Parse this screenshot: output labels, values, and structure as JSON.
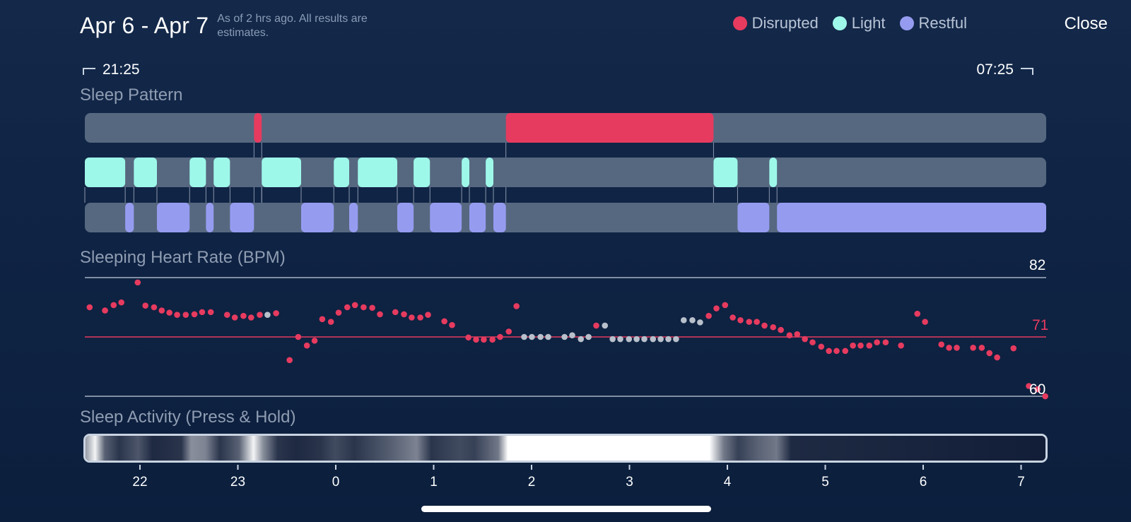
{
  "header": {
    "date_range": "Apr 6 - Apr 7",
    "note": "As of 2 hrs ago. All results are estimates."
  },
  "legend": [
    {
      "label": "Disrupted",
      "color": "#e63b5f"
    },
    {
      "label": "Light",
      "color": "#9ef8ea"
    },
    {
      "label": "Restful",
      "color": "#959cf0"
    }
  ],
  "close_label": "Close",
  "time_range": {
    "start": "21:25",
    "end": "07:25"
  },
  "sections": {
    "sleep_pattern": "Sleep Pattern",
    "heart_rate": "Sleeping Heart Rate (BPM)",
    "activity": "Sleep Activity (Press & Hold)"
  },
  "colors": {
    "disrupted": "#e63b5f",
    "light": "#9ef8ea",
    "restful": "#959cf0",
    "track": "#566880",
    "hr_point": "#e63b5f",
    "hr_missing": "#b8c0cb",
    "grid": "#a6b2c4"
  },
  "chart_data": [
    {
      "type": "timeline",
      "title": "Sleep Pattern",
      "x_unit": "hours after 21:25",
      "x_range": [
        0,
        10
      ],
      "rows": [
        {
          "name": "Disrupted",
          "segments": [
            [
              1.76,
              1.84
            ],
            [
              4.38,
              6.54
            ]
          ]
        },
        {
          "name": "Light",
          "segments": [
            [
              0.0,
              0.42
            ],
            [
              0.51,
              0.75
            ],
            [
              1.09,
              1.26
            ],
            [
              1.34,
              1.51
            ],
            [
              1.84,
              2.25
            ],
            [
              2.59,
              2.75
            ],
            [
              2.84,
              3.25
            ],
            [
              3.42,
              3.59
            ],
            [
              3.92,
              4.0
            ],
            [
              4.17,
              4.25
            ],
            [
              6.54,
              6.79
            ],
            [
              7.12,
              7.2
            ]
          ]
        },
        {
          "name": "Restful",
          "segments": [
            [
              0.42,
              0.51
            ],
            [
              0.75,
              1.09
            ],
            [
              1.26,
              1.34
            ],
            [
              1.51,
              1.76
            ],
            [
              2.25,
              2.59
            ],
            [
              2.75,
              2.84
            ],
            [
              3.25,
              3.42
            ],
            [
              3.59,
              3.92
            ],
            [
              4.0,
              4.17
            ],
            [
              4.25,
              4.38
            ],
            [
              6.79,
              7.12
            ],
            [
              7.2,
              10.0
            ]
          ]
        }
      ]
    },
    {
      "type": "scatter",
      "title": "Sleeping Heart Rate (BPM)",
      "ylim": [
        60,
        82
      ],
      "y_ticks": [
        82,
        71,
        60
      ],
      "reference_line": 71,
      "x_unit": "hours after 21:25",
      "points": [
        [
          0.05,
          76.5
        ],
        [
          0.21,
          75.9
        ],
        [
          0.3,
          76.9
        ],
        [
          0.38,
          77.4
        ],
        [
          0.55,
          81.1
        ],
        [
          0.63,
          76.8
        ],
        [
          0.72,
          76.5
        ],
        [
          0.8,
          75.9
        ],
        [
          0.88,
          75.5
        ],
        [
          0.96,
          75.1
        ],
        [
          1.05,
          75.1
        ],
        [
          1.14,
          75.2
        ],
        [
          1.22,
          75.6
        ],
        [
          1.31,
          75.6
        ],
        [
          1.48,
          75.1
        ],
        [
          1.56,
          74.6
        ],
        [
          1.65,
          74.9
        ],
        [
          1.73,
          74.6
        ],
        [
          1.82,
          75.1
        ],
        [
          1.9,
          75.1
        ],
        [
          1.99,
          75.4
        ],
        [
          2.13,
          66.7
        ],
        [
          2.22,
          71.0
        ],
        [
          2.31,
          69.4
        ],
        [
          2.39,
          70.3
        ],
        [
          2.47,
          74.3
        ],
        [
          2.56,
          73.8
        ],
        [
          2.64,
          75.5
        ],
        [
          2.73,
          76.5
        ],
        [
          2.81,
          76.9
        ],
        [
          2.9,
          76.5
        ],
        [
          2.99,
          76.4
        ],
        [
          3.07,
          75.2
        ],
        [
          3.23,
          75.6
        ],
        [
          3.32,
          75.2
        ],
        [
          3.4,
          74.6
        ],
        [
          3.49,
          74.6
        ],
        [
          3.57,
          75.1
        ],
        [
          3.74,
          73.9
        ],
        [
          3.82,
          73.2
        ],
        [
          3.99,
          70.9
        ],
        [
          4.07,
          70.5
        ],
        [
          4.15,
          70.5
        ],
        [
          4.24,
          70.5
        ],
        [
          4.32,
          71.0
        ],
        [
          4.41,
          72.0
        ],
        [
          4.49,
          76.7
        ],
        [
          4.57,
          71.0
        ],
        [
          4.65,
          71.0
        ],
        [
          4.74,
          71.0
        ],
        [
          4.82,
          71.0
        ],
        [
          4.99,
          71.0
        ],
        [
          5.07,
          71.3
        ],
        [
          5.16,
          70.6
        ],
        [
          5.24,
          71.0
        ],
        [
          5.32,
          73.1
        ],
        [
          5.41,
          73.1
        ],
        [
          5.49,
          70.6
        ],
        [
          5.57,
          70.6
        ],
        [
          5.66,
          70.6
        ],
        [
          5.74,
          70.6
        ],
        [
          5.82,
          70.6
        ],
        [
          5.91,
          70.6
        ],
        [
          5.99,
          70.6
        ],
        [
          6.07,
          70.6
        ],
        [
          6.15,
          70.6
        ],
        [
          6.23,
          74.1
        ],
        [
          6.32,
          74.1
        ],
        [
          6.4,
          73.7
        ],
        [
          6.49,
          74.9
        ],
        [
          6.57,
          76.3
        ],
        [
          6.66,
          76.9
        ],
        [
          6.74,
          74.6
        ],
        [
          6.82,
          74.1
        ],
        [
          6.91,
          73.8
        ],
        [
          6.99,
          73.8
        ],
        [
          7.07,
          73.1
        ],
        [
          7.16,
          72.8
        ],
        [
          7.24,
          72.3
        ],
        [
          7.33,
          71.3
        ],
        [
          7.41,
          71.5
        ],
        [
          7.49,
          70.6
        ],
        [
          7.57,
          70.0
        ],
        [
          7.66,
          69.2
        ],
        [
          7.74,
          68.4
        ],
        [
          7.82,
          68.4
        ],
        [
          7.91,
          68.4
        ],
        [
          7.99,
          69.4
        ],
        [
          8.07,
          69.4
        ],
        [
          8.16,
          69.4
        ],
        [
          8.24,
          70.0
        ],
        [
          8.33,
          70.0
        ],
        [
          8.49,
          69.4
        ],
        [
          8.66,
          75.3
        ],
        [
          8.74,
          73.8
        ],
        [
          8.91,
          69.6
        ],
        [
          8.99,
          69.0
        ],
        [
          9.07,
          69.0
        ],
        [
          9.24,
          69.0
        ],
        [
          9.33,
          69.0
        ],
        [
          9.41,
          68.0
        ],
        [
          9.49,
          67.2
        ],
        [
          9.66,
          68.9
        ],
        [
          9.82,
          61.9
        ],
        [
          9.91,
          61.3
        ],
        [
          9.99,
          60.0
        ]
      ],
      "missing_points": [
        [
          1.9,
          75.1
        ],
        [
          4.57,
          71.0
        ],
        [
          4.65,
          71.0
        ],
        [
          4.74,
          71.0
        ],
        [
          4.82,
          71.0
        ],
        [
          4.99,
          71.0
        ],
        [
          5.07,
          71.3
        ],
        [
          5.16,
          70.6
        ],
        [
          5.24,
          71.0
        ],
        [
          5.41,
          73.1
        ],
        [
          5.49,
          70.6
        ],
        [
          5.57,
          70.6
        ],
        [
          5.66,
          70.6
        ],
        [
          5.74,
          70.6
        ],
        [
          5.82,
          70.6
        ],
        [
          5.91,
          70.6
        ],
        [
          5.99,
          70.6
        ],
        [
          6.07,
          70.6
        ],
        [
          6.15,
          70.6
        ],
        [
          6.23,
          74.1
        ],
        [
          6.32,
          74.1
        ],
        [
          6.4,
          73.7
        ]
      ]
    },
    {
      "type": "heatmap",
      "title": "Sleep Activity (Press & Hold)",
      "x_unit": "hours after 21:25",
      "intensity": [
        [
          0.0,
          0.55
        ],
        [
          0.1,
          0.95
        ],
        [
          0.2,
          0.3
        ],
        [
          0.35,
          0.1
        ],
        [
          0.55,
          0.25
        ],
        [
          0.7,
          0.05
        ],
        [
          1.0,
          0.1
        ],
        [
          1.1,
          0.5
        ],
        [
          1.25,
          0.45
        ],
        [
          1.4,
          0.1
        ],
        [
          1.6,
          0.3
        ],
        [
          1.75,
          0.95
        ],
        [
          1.85,
          0.5
        ],
        [
          2.0,
          0.1
        ],
        [
          2.2,
          0.05
        ],
        [
          2.45,
          0.1
        ],
        [
          2.6,
          0.2
        ],
        [
          2.8,
          0.1
        ],
        [
          3.0,
          0.2
        ],
        [
          3.2,
          0.3
        ],
        [
          3.45,
          0.45
        ],
        [
          3.6,
          0.1
        ],
        [
          3.9,
          0.2
        ],
        [
          4.05,
          0.15
        ],
        [
          4.3,
          0.4
        ],
        [
          4.4,
          1.0
        ],
        [
          6.5,
          1.0
        ],
        [
          6.65,
          0.4
        ],
        [
          6.8,
          0.15
        ],
        [
          7.0,
          0.3
        ],
        [
          7.2,
          0.4
        ],
        [
          7.35,
          0.05
        ],
        [
          10.0,
          0.0
        ]
      ],
      "x_ticks": [
        "22",
        "23",
        "0",
        "1",
        "2",
        "3",
        "4",
        "5",
        "6",
        "7"
      ]
    }
  ]
}
